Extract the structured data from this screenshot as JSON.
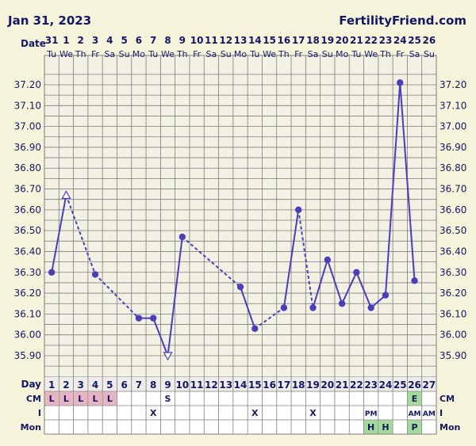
{
  "header": {
    "date": "Jan 31, 2023",
    "site": "FertilityFriend.com"
  },
  "chart_data": {
    "type": "line",
    "title": "",
    "xlabel": "Date",
    "ylabel": "",
    "ylim": [
      35.85,
      37.25
    ],
    "y_ticks": [
      "37.20",
      "37.10",
      "37.00",
      "36.90",
      "36.80",
      "36.70",
      "36.60",
      "36.50",
      "36.40",
      "36.30",
      "36.20",
      "36.10",
      "36.00",
      "35.90"
    ],
    "dates": [
      "31",
      "1",
      "2",
      "3",
      "4",
      "5",
      "6",
      "7",
      "8",
      "9",
      "10",
      "11",
      "12",
      "13",
      "14",
      "15",
      "16",
      "17",
      "18",
      "19",
      "20",
      "21",
      "22",
      "23",
      "24",
      "25",
      "26"
    ],
    "weekdays": [
      "Tu",
      "We",
      "Th",
      "Fr",
      "Sa",
      "Su",
      "Mo",
      "Tu",
      "We",
      "Th",
      "Fr",
      "Sa",
      "Su",
      "Mo",
      "Tu",
      "We",
      "Th",
      "Fr",
      "Sa",
      "Su",
      "Mo",
      "Tu",
      "We",
      "Th",
      "Fr",
      "Sa",
      "Su"
    ],
    "days": [
      "1",
      "2",
      "3",
      "4",
      "5",
      "6",
      "7",
      "8",
      "9",
      "10",
      "11",
      "12",
      "13",
      "14",
      "15",
      "16",
      "17",
      "18",
      "19",
      "20",
      "21",
      "22",
      "23",
      "24",
      "25",
      "26",
      "27"
    ],
    "series": [
      {
        "values": [
          36.3,
          36.67,
          null,
          36.29,
          null,
          null,
          36.08,
          36.08,
          35.9,
          36.47,
          null,
          null,
          null,
          36.23,
          36.03,
          null,
          36.13,
          36.6,
          36.13,
          36.36,
          36.15,
          36.3,
          36.13,
          36.19,
          37.21,
          36.26,
          null
        ],
        "markers": [
          "dot",
          "open-up",
          "",
          "dot",
          "",
          "",
          "dot",
          "dot",
          "open-down",
          "dot",
          "",
          "",
          "",
          "dot",
          "dot",
          "",
          "dot",
          "dot",
          "dot",
          "dot",
          "dot",
          "dot",
          "dot",
          "dot",
          "dot",
          "dot",
          ""
        ],
        "segments": [
          {
            "from": 1,
            "to": 2,
            "style": "solid"
          },
          {
            "from": 2,
            "to": 4,
            "style": "dashed"
          },
          {
            "from": 4,
            "to": 7,
            "style": "dashed"
          },
          {
            "from": 7,
            "to": 8,
            "style": "solid"
          },
          {
            "from": 8,
            "to": 9,
            "style": "solid"
          },
          {
            "from": 9,
            "to": 10,
            "style": "solid"
          },
          {
            "from": 10,
            "to": 14,
            "style": "dashed"
          },
          {
            "from": 14,
            "to": 15,
            "style": "solid"
          },
          {
            "from": 15,
            "to": 17,
            "style": "dashed"
          },
          {
            "from": 17,
            "to": 18,
            "style": "solid"
          },
          {
            "from": 18,
            "to": 19,
            "style": "dashed"
          },
          {
            "from": 19,
            "to": 20,
            "style": "solid"
          },
          {
            "from": 20,
            "to": 21,
            "style": "solid"
          },
          {
            "from": 21,
            "to": 22,
            "style": "solid"
          },
          {
            "from": 22,
            "to": 23,
            "style": "solid"
          },
          {
            "from": 23,
            "to": 24,
            "style": "solid"
          },
          {
            "from": 24,
            "to": 25,
            "style": "solid"
          },
          {
            "from": 25,
            "to": 26,
            "style": "solid"
          }
        ]
      }
    ],
    "colors": {
      "line": "#4a3fb8",
      "grid": "#7d7d7d",
      "plot_bg": "#f2f1e4",
      "page_bg": "#f7f4dc",
      "label_text": "#141864",
      "cm_pink": "#e8b4c4",
      "green": "#a3dc9a"
    },
    "rows": {
      "labels": {
        "day": "Day",
        "cm": "CM",
        "i": "I",
        "mon": "Mon"
      },
      "cm": [
        "L",
        "L",
        "L",
        "L",
        "L",
        "",
        "",
        "",
        "S",
        "",
        "",
        "",
        "",
        "",
        "",
        "",
        "",
        "",
        "",
        "",
        "",
        "",
        "",
        "",
        "",
        "E",
        ""
      ],
      "i": [
        "",
        "",
        "",
        "",
        "",
        "",
        "",
        "X",
        "",
        "",
        "",
        "",
        "",
        "",
        "X",
        "",
        "",
        "",
        "X",
        "",
        "",
        "",
        "PM",
        "",
        "",
        "AM",
        "AM"
      ],
      "mon": [
        "",
        "",
        "",
        "",
        "",
        "",
        "",
        "",
        "",
        "",
        "",
        "",
        "",
        "",
        "",
        "",
        "",
        "",
        "",
        "",
        "",
        "",
        "H",
        "H",
        "",
        "P",
        ""
      ]
    }
  }
}
